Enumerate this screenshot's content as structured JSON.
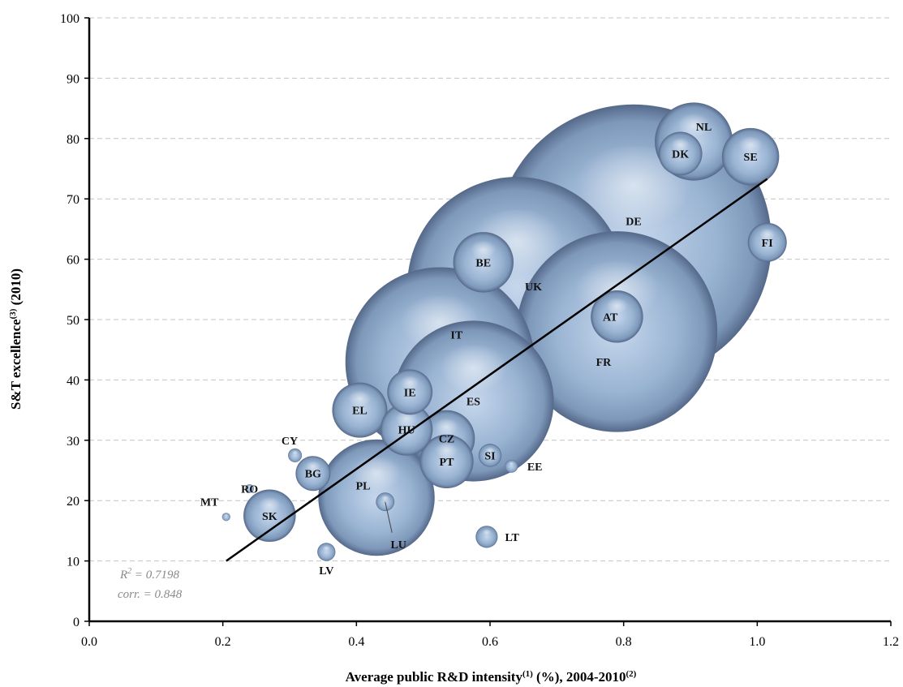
{
  "chart_data": {
    "type": "scatter",
    "subtype": "bubble",
    "xlabel": {
      "main": "Average public R&D intensity",
      "sup1": "(1)",
      "mid": " (%), 2004-2010",
      "sup2": "(2)"
    },
    "ylabel": {
      "main": "S&T excellence",
      "sup": "(3)",
      "tail": " (2010)"
    },
    "xlim": [
      0,
      1.2
    ],
    "ylim": [
      0,
      100
    ],
    "xticks": [
      "0.0",
      "0.2",
      "0.4",
      "0.6",
      "0.8",
      "1.0",
      "1.2"
    ],
    "yticks": [
      "0",
      "10",
      "20",
      "30",
      "40",
      "50",
      "60",
      "70",
      "80",
      "90",
      "100"
    ],
    "grid": "horizontal-dashed",
    "bubble_color": "#8fa9c9",
    "trendline": {
      "x1": 0.205,
      "y1": 10.0,
      "x2": 1.015,
      "y2": 73.3,
      "color": "#000000"
    },
    "stats": {
      "r2_label": "R",
      "r2_sup": "2",
      "r2_value": " = 0.7198",
      "corr": "corr. = 0.848"
    },
    "points": [
      {
        "code": "DE",
        "x": 0.815,
        "y": 62.8,
        "size": 1.0
      },
      {
        "code": "FR",
        "x": 0.79,
        "y": 48.0,
        "size": 0.53
      },
      {
        "code": "UK",
        "x": 0.64,
        "y": 55.5,
        "size": 0.63
      },
      {
        "code": "IT",
        "x": 0.525,
        "y": 43.0,
        "size": 0.47
      },
      {
        "code": "ES",
        "x": 0.575,
        "y": 36.5,
        "size": 0.34
      },
      {
        "code": "PL",
        "x": 0.43,
        "y": 20.5,
        "size": 0.178
      },
      {
        "code": "NL",
        "x": 0.905,
        "y": 79.5,
        "size": 0.08
      },
      {
        "code": "BE",
        "x": 0.59,
        "y": 59.5,
        "size": 0.048
      },
      {
        "code": "SE",
        "x": 0.99,
        "y": 77.0,
        "size": 0.043
      },
      {
        "code": "AT",
        "x": 0.79,
        "y": 50.5,
        "size": 0.036
      },
      {
        "code": "DK",
        "x": 0.885,
        "y": 77.5,
        "size": 0.025
      },
      {
        "code": "FI",
        "x": 1.015,
        "y": 62.8,
        "size": 0.02
      },
      {
        "code": "CZ",
        "x": 0.535,
        "y": 30.3,
        "size": 0.042
      },
      {
        "code": "PT",
        "x": 0.535,
        "y": 26.5,
        "size": 0.038
      },
      {
        "code": "EL",
        "x": 0.405,
        "y": 35.0,
        "size": 0.04
      },
      {
        "code": "HU",
        "x": 0.475,
        "y": 31.8,
        "size": 0.036
      },
      {
        "code": "IE",
        "x": 0.48,
        "y": 38.0,
        "size": 0.027
      },
      {
        "code": "SK",
        "x": 0.27,
        "y": 17.5,
        "size": 0.036
      },
      {
        "code": "BG",
        "x": 0.335,
        "y": 24.5,
        "size": 0.016
      },
      {
        "code": "RO",
        "x": 0.24,
        "y": 22.0,
        "size": 0.001
      },
      {
        "code": "SI",
        "x": 0.6,
        "y": 27.5,
        "size": 0.007
      },
      {
        "code": "LT",
        "x": 0.595,
        "y": 14.0,
        "size": 0.0064
      },
      {
        "code": "LV",
        "x": 0.355,
        "y": 11.5,
        "size": 0.0043
      },
      {
        "code": "EE",
        "x": 0.632,
        "y": 25.7,
        "size": 0.0022
      },
      {
        "code": "CY",
        "x": 0.308,
        "y": 27.5,
        "size": 0.0025
      },
      {
        "code": "MT",
        "x": 0.205,
        "y": 17.3,
        "size": 0.0009
      },
      {
        "code": "LU",
        "x": 0.443,
        "y": 19.8,
        "size": 0.0045
      }
    ],
    "label_offsets": {
      "DE": [
        0.0,
        3.5
      ],
      "FR": [
        -0.02,
        -5.0
      ],
      "UK": [
        0.025,
        0.0
      ],
      "IT": [
        0.025,
        4.5
      ],
      "ES": [
        0.0,
        0.0
      ],
      "PL": [
        -0.02,
        2.0
      ],
      "NL": [
        0.015,
        2.5
      ],
      "BE": [
        0.0,
        0.0
      ],
      "SE": [
        0.0,
        0.0
      ],
      "AT": [
        -0.01,
        0.0
      ],
      "DK": [
        0.0,
        0.0
      ],
      "FI": [
        0.0,
        0.0
      ],
      "CZ": [
        0.0,
        0.0
      ],
      "PT": [
        0.0,
        0.0
      ],
      "EL": [
        0.0,
        0.0
      ],
      "HU": [
        0.0,
        0.0
      ],
      "IE": [
        0.0,
        0.0
      ],
      "SK": [
        0.0,
        0.0
      ],
      "BG": [
        0.0,
        0.0
      ],
      "RO": [
        0.0,
        0.0
      ],
      "SI": [
        0.0,
        0.0
      ],
      "LT": [
        0.038,
        0.0
      ],
      "LV": [
        0.0,
        -3.0
      ],
      "EE": [
        0.035,
        0.0
      ],
      "CY": [
        -0.008,
        2.5
      ],
      "MT": [
        -0.025,
        2.5
      ],
      "LU": [
        0.02,
        -7.0
      ]
    }
  }
}
